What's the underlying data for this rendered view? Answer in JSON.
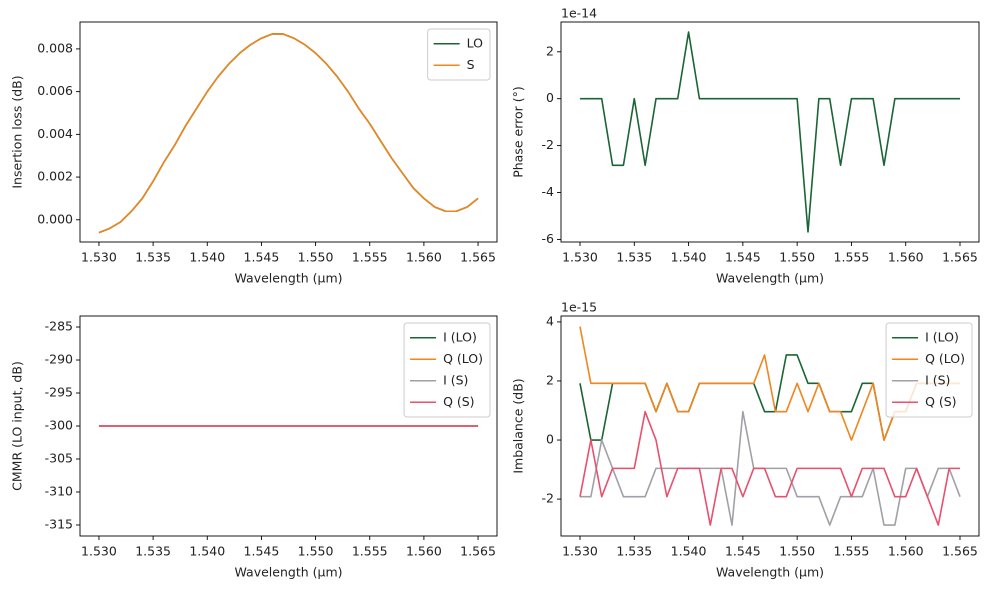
{
  "chart_data": [
    {
      "type": "line",
      "xlabel": "Wavelength (µm)",
      "ylabel": "Insertion loss (dB)",
      "x": [
        1.53,
        1.531,
        1.532,
        1.533,
        1.534,
        1.535,
        1.536,
        1.537,
        1.538,
        1.539,
        1.54,
        1.541,
        1.542,
        1.543,
        1.544,
        1.545,
        1.546,
        1.547,
        1.548,
        1.549,
        1.55,
        1.551,
        1.552,
        1.553,
        1.554,
        1.555,
        1.556,
        1.557,
        1.558,
        1.559,
        1.56,
        1.561,
        1.562,
        1.563,
        1.564,
        1.565
      ],
      "series": [
        {
          "name": "LO",
          "color": "#1b6535",
          "values": [
            -0.0006,
            -0.0004,
            -0.0001,
            0.0004,
            0.001,
            0.0018,
            0.0027,
            0.0035,
            0.0044,
            0.0052,
            0.006,
            0.0067,
            0.0073,
            0.0078,
            0.0082,
            0.0085,
            0.0087,
            0.0087,
            0.0085,
            0.0082,
            0.0078,
            0.0073,
            0.0067,
            0.006,
            0.0052,
            0.0045,
            0.0037,
            0.0029,
            0.0022,
            0.0015,
            0.001,
            0.0006,
            0.0004,
            0.0004,
            0.0006,
            0.001
          ]
        },
        {
          "name": "S",
          "color": "#f0861e",
          "values": [
            -0.0006,
            -0.0004,
            -0.0001,
            0.0004,
            0.001,
            0.0018,
            0.0027,
            0.0035,
            0.0044,
            0.0052,
            0.006,
            0.0067,
            0.0073,
            0.0078,
            0.0082,
            0.0085,
            0.0087,
            0.0087,
            0.0085,
            0.0082,
            0.0078,
            0.0073,
            0.0067,
            0.006,
            0.0052,
            0.0045,
            0.0037,
            0.0029,
            0.0022,
            0.0015,
            0.001,
            0.0006,
            0.0004,
            0.0004,
            0.0006,
            0.001
          ]
        }
      ],
      "xlim": [
        1.52825,
        1.56675
      ],
      "ylim": [
        -0.00104,
        0.00926
      ],
      "xticks": [
        {
          "value": 1.53,
          "label": "1.530"
        },
        1.535,
        {
          "value": 1.54,
          "label": "1.540"
        },
        1.545,
        {
          "value": 1.55,
          "label": "1.550"
        },
        1.555,
        {
          "value": 1.56,
          "label": "1.560"
        },
        1.565
      ],
      "yticks": [
        {
          "value": 0,
          "label": "0.000"
        },
        {
          "value": 0.002,
          "label": "0.002"
        },
        {
          "value": 0.004,
          "label": "0.004"
        },
        {
          "value": 0.006,
          "label": "0.006"
        },
        {
          "value": 0.008,
          "label": "0.008"
        }
      ],
      "legend": "upper right"
    },
    {
      "type": "line",
      "xlabel": "Wavelength (µm)",
      "ylabel": "Phase error (°)",
      "offset_text": "1e-14",
      "x": [
        1.53,
        1.531,
        1.532,
        1.533,
        1.534,
        1.535,
        1.536,
        1.537,
        1.538,
        1.539,
        1.54,
        1.541,
        1.542,
        1.543,
        1.544,
        1.545,
        1.546,
        1.547,
        1.548,
        1.549,
        1.55,
        1.551,
        1.552,
        1.553,
        1.554,
        1.555,
        1.556,
        1.557,
        1.558,
        1.559,
        1.56,
        1.561,
        1.562,
        1.563,
        1.564,
        1.565
      ],
      "series": [
        {
          "color": "#1b6535",
          "values": [
            0,
            0,
            0,
            -2.84,
            -2.84,
            0,
            -2.84,
            0,
            0,
            0,
            2.84,
            0,
            0,
            0,
            0,
            0,
            0,
            0,
            0,
            0,
            0,
            -5.68,
            0,
            0,
            -2.84,
            0,
            0,
            0,
            -2.84,
            0,
            0,
            0,
            0,
            0,
            0,
            0
          ]
        }
      ],
      "xlim": [
        1.52825,
        1.56675
      ],
      "ylim": [
        -6.11,
        3.27
      ],
      "xticks": [
        {
          "value": 1.53,
          "label": "1.530"
        },
        1.535,
        {
          "value": 1.54,
          "label": "1.540"
        },
        1.545,
        {
          "value": 1.55,
          "label": "1.550"
        },
        1.555,
        {
          "value": 1.56,
          "label": "1.560"
        },
        1.565
      ],
      "yticks": [
        -6,
        -4,
        -2,
        0,
        2
      ]
    },
    {
      "type": "line",
      "xlabel": "Wavelength (µm)",
      "ylabel": "CMMR (LO input, dB)",
      "x": [
        1.53,
        1.531,
        1.532,
        1.533,
        1.534,
        1.535,
        1.536,
        1.537,
        1.538,
        1.539,
        1.54,
        1.541,
        1.542,
        1.543,
        1.544,
        1.545,
        1.546,
        1.547,
        1.548,
        1.549,
        1.55,
        1.551,
        1.552,
        1.553,
        1.554,
        1.555,
        1.556,
        1.557,
        1.558,
        1.559,
        1.56,
        1.561,
        1.562,
        1.563,
        1.564,
        1.565
      ],
      "series": [
        {
          "name": "I (LO)",
          "color": "#1b6535",
          "values": [
            -300,
            -300,
            -300,
            -300,
            -300,
            -300,
            -300,
            -300,
            -300,
            -300,
            -300,
            -300,
            -300,
            -300,
            -300,
            -300,
            -300,
            -300,
            -300,
            -300,
            -300,
            -300,
            -300,
            -300,
            -300,
            -300,
            -300,
            -300,
            -300,
            -300,
            -300,
            -300,
            -300,
            -300,
            -300,
            -300
          ]
        },
        {
          "name": "Q (LO)",
          "color": "#f0861e",
          "values": [
            -300,
            -300,
            -300,
            -300,
            -300,
            -300,
            -300,
            -300,
            -300,
            -300,
            -300,
            -300,
            -300,
            -300,
            -300,
            -300,
            -300,
            -300,
            -300,
            -300,
            -300,
            -300,
            -300,
            -300,
            -300,
            -300,
            -300,
            -300,
            -300,
            -300,
            -300,
            -300,
            -300,
            -300,
            -300,
            -300
          ]
        },
        {
          "name": "I (S)",
          "color": "#a0a0a8",
          "values": [
            -300,
            -300,
            -300,
            -300,
            -300,
            -300,
            -300,
            -300,
            -300,
            -300,
            -300,
            -300,
            -300,
            -300,
            -300,
            -300,
            -300,
            -300,
            -300,
            -300,
            -300,
            -300,
            -300,
            -300,
            -300,
            -300,
            -300,
            -300,
            -300,
            -300,
            -300,
            -300,
            -300,
            -300,
            -300,
            -300
          ]
        },
        {
          "name": "Q (S)",
          "color": "#e8506e",
          "values": [
            -300,
            -300,
            -300,
            -300,
            -300,
            -300,
            -300,
            -300,
            -300,
            -300,
            -300,
            -300,
            -300,
            -300,
            -300,
            -300,
            -300,
            -300,
            -300,
            -300,
            -300,
            -300,
            -300,
            -300,
            -300,
            -300,
            -300,
            -300,
            -300,
            -300,
            -300,
            -300,
            -300,
            -300,
            -300,
            -300
          ]
        }
      ],
      "xlim": [
        1.52825,
        1.56675
      ],
      "ylim": [
        -316.67,
        -283.33
      ],
      "xticks": [
        {
          "value": 1.53,
          "label": "1.530"
        },
        1.535,
        {
          "value": 1.54,
          "label": "1.540"
        },
        1.545,
        {
          "value": 1.55,
          "label": "1.550"
        },
        1.555,
        {
          "value": 1.56,
          "label": "1.560"
        },
        1.565
      ],
      "yticks": [
        -315,
        -310,
        -305,
        -300,
        -295,
        -290,
        -285
      ],
      "legend": "upper right"
    },
    {
      "type": "line",
      "xlabel": "Wavelength (µm)",
      "ylabel": "Imbalance (dB)",
      "offset_text": "1e-15",
      "x": [
        1.53,
        1.531,
        1.532,
        1.533,
        1.534,
        1.535,
        1.536,
        1.537,
        1.538,
        1.539,
        1.54,
        1.541,
        1.542,
        1.543,
        1.544,
        1.545,
        1.546,
        1.547,
        1.548,
        1.549,
        1.55,
        1.551,
        1.552,
        1.553,
        1.554,
        1.555,
        1.556,
        1.557,
        1.558,
        1.559,
        1.56,
        1.561,
        1.562,
        1.563,
        1.564,
        1.565
      ],
      "series": [
        {
          "name": "I (LO)",
          "color": "#1b6535",
          "values": [
            1.92,
            0,
            0,
            1.92,
            1.92,
            1.92,
            1.92,
            0.96,
            1.92,
            0.96,
            0.96,
            1.92,
            1.92,
            1.92,
            1.92,
            1.92,
            1.92,
            0.96,
            0.96,
            2.88,
            2.88,
            1.92,
            1.92,
            0.96,
            0.96,
            0.96,
            1.92,
            1.92,
            0,
            0.96,
            0.96,
            1.92,
            1.92,
            1.92,
            1.92,
            1.92
          ]
        },
        {
          "name": "Q (LO)",
          "color": "#f0861e",
          "values": [
            3.84,
            1.92,
            1.92,
            1.92,
            1.92,
            1.92,
            1.92,
            0.96,
            1.92,
            0.96,
            0.96,
            1.92,
            1.92,
            1.92,
            1.92,
            1.92,
            1.92,
            2.88,
            0.96,
            0.96,
            1.92,
            0.96,
            1.92,
            0.96,
            0.96,
            0,
            0.96,
            1.92,
            0,
            0.96,
            0.96,
            1.92,
            1.92,
            1.92,
            1.92,
            1.92
          ]
        },
        {
          "name": "I (S)",
          "color": "#a0a0a8",
          "values": [
            -1.92,
            -1.92,
            0,
            -0.96,
            -1.92,
            -1.92,
            -1.92,
            -0.96,
            -0.96,
            -0.96,
            -0.96,
            -0.96,
            -0.96,
            -0.96,
            -2.88,
            0.96,
            -0.96,
            -0.96,
            -0.96,
            -0.96,
            -1.92,
            -1.92,
            -1.92,
            -2.88,
            -1.92,
            -1.92,
            -1.92,
            -0.96,
            -2.88,
            -2.88,
            -0.96,
            -0.96,
            -1.92,
            -0.96,
            -0.96,
            -1.92
          ]
        },
        {
          "name": "Q (S)",
          "color": "#e8506e",
          "values": [
            -1.92,
            0,
            -1.92,
            -0.96,
            -0.96,
            -0.96,
            0.96,
            0,
            -1.92,
            -0.96,
            -0.96,
            -0.96,
            -2.88,
            -0.96,
            -0.96,
            -1.92,
            -0.96,
            -0.96,
            -1.92,
            -1.92,
            -0.96,
            -0.96,
            -0.96,
            -0.96,
            -0.96,
            -1.92,
            -0.96,
            -0.96,
            -0.96,
            -1.92,
            -1.92,
            -0.96,
            -1.92,
            -2.88,
            -0.96,
            -0.96
          ]
        }
      ],
      "xlim": [
        1.52825,
        1.56675
      ],
      "ylim": [
        -3.25,
        4.2
      ],
      "xticks": [
        {
          "value": 1.53,
          "label": "1.530"
        },
        1.535,
        {
          "value": 1.54,
          "label": "1.540"
        },
        1.545,
        {
          "value": 1.55,
          "label": "1.550"
        },
        1.555,
        {
          "value": 1.56,
          "label": "1.560"
        },
        1.565
      ],
      "yticks": [
        -2,
        0,
        2,
        4
      ],
      "legend": "upper right"
    }
  ]
}
